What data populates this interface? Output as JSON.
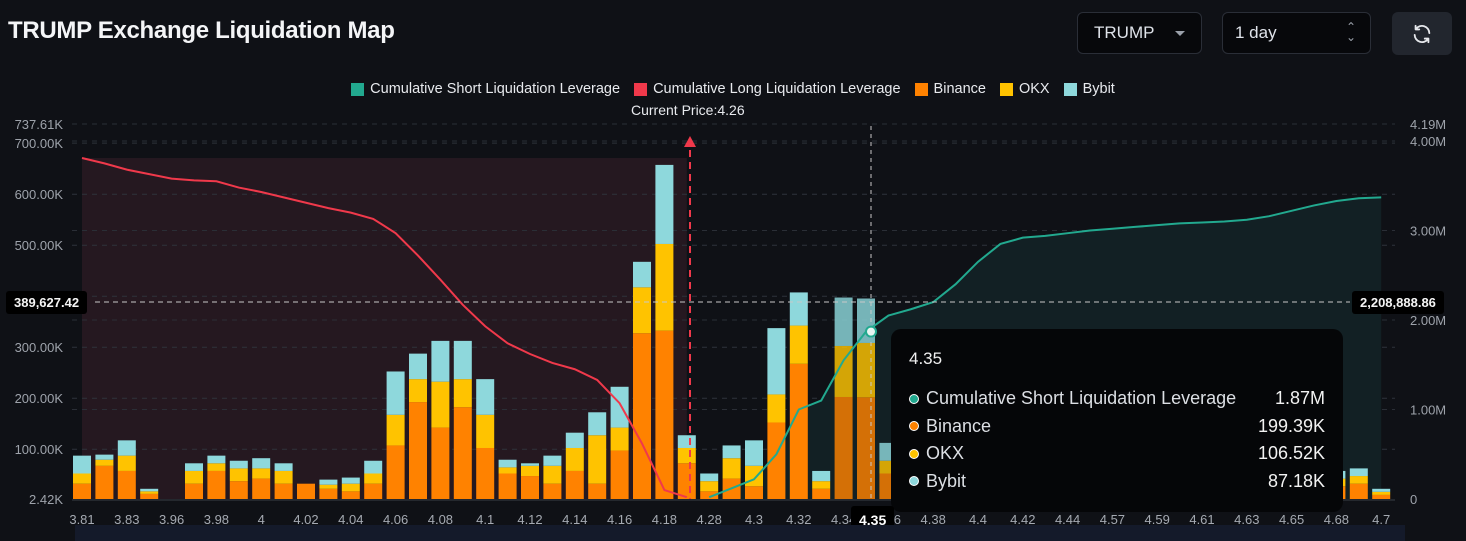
{
  "header": {
    "title": "TRUMP Exchange Liquidation Map",
    "symbol_select": {
      "value": "TRUMP",
      "icon": "caret-down-icon"
    },
    "range_select": {
      "value": "1 day",
      "icon": "up-down-icon"
    },
    "refresh_icon": "refresh-icon"
  },
  "colors": {
    "short": "#22a98f",
    "long": "#f0394b",
    "binance": "#ff8200",
    "okx": "#ffc300",
    "bybit": "#8ed8dc"
  },
  "legend": [
    {
      "label": "Cumulative Short Liquidation Leverage",
      "color": "#22a98f"
    },
    {
      "label": "Cumulative Long Liquidation Leverage",
      "color": "#f0394b"
    },
    {
      "label": "Binance",
      "color": "#ff8200"
    },
    {
      "label": "OKX",
      "color": "#ffc300"
    },
    {
      "label": "Bybit",
      "color": "#8ed8dc"
    }
  ],
  "current_price_label": "Current Price:4.26",
  "crosshair": {
    "y_left_label": "389,627.42",
    "y_right_label": "2,208,888.86",
    "x_label": "4.35"
  },
  "tooltip": {
    "title": "4.35",
    "rows": [
      {
        "label": "Cumulative Short Liquidation Leverage",
        "value": "1.87M",
        "color": "#22a98f"
      },
      {
        "label": "Binance",
        "value": "199.39K",
        "color": "#ff8200"
      },
      {
        "label": "OKX",
        "value": "106.52K",
        "color": "#ffc300"
      },
      {
        "label": "Bybit",
        "value": "87.18K",
        "color": "#8ed8dc"
      }
    ]
  },
  "chart_data": {
    "type": "bar",
    "stacked": true,
    "title": "TRUMP Exchange Liquidation Map",
    "current_price": 4.26,
    "y_left": {
      "ticks": [
        "2.42K",
        "100.00K",
        "200.00K",
        "300.00K",
        "400.00K",
        "500.00K",
        "600.00K",
        "700.00K",
        "737.61K"
      ],
      "range": [
        2420,
        737610
      ]
    },
    "y_right": {
      "ticks": [
        "0",
        "1.00M",
        "2.00M",
        "3.00M",
        "4.00M",
        "4.19M"
      ],
      "range": [
        0,
        4190000
      ]
    },
    "x_tick_labels": [
      "3.81",
      "3.83",
      "3.96",
      "3.98",
      "4",
      "4.02",
      "4.04",
      "4.06",
      "4.08",
      "4.1",
      "4.12",
      "4.14",
      "4.16",
      "4.18",
      "4.28",
      "4.3",
      "4.32",
      "4.34",
      "4.36",
      "4.38",
      "4.4",
      "4.42",
      "4.44",
      "4.57",
      "4.59",
      "4.61",
      "4.63",
      "4.65",
      "4.68",
      "4.7"
    ],
    "categories": [
      "3.81",
      "3.82",
      "3.83",
      "3.84",
      "3.96",
      "3.97",
      "3.98",
      "3.99",
      "4",
      "4.01",
      "4.02",
      "4.03",
      "4.04",
      "4.05",
      "4.06",
      "4.07",
      "4.08",
      "4.09",
      "4.1",
      "4.11",
      "4.12",
      "4.13",
      "4.14",
      "4.15",
      "4.16",
      "4.17",
      "4.18",
      "4.19",
      "4.28",
      "4.29",
      "4.3",
      "4.31",
      "4.32",
      "4.33",
      "4.34",
      "4.35",
      "4.36",
      "4.37",
      "4.38",
      "4.39",
      "4.4",
      "4.41",
      "4.42",
      "4.43",
      "4.44",
      "4.45",
      "4.57",
      "4.58",
      "4.59",
      "4.6",
      "4.61",
      "4.62",
      "4.63",
      "4.64",
      "4.65",
      "4.66",
      "4.68",
      "4.69",
      "4.7"
    ],
    "series": [
      {
        "name": "Binance",
        "axis": "left",
        "values": [
          30,
          65,
          55,
          10,
          0,
          30,
          55,
          35,
          40,
          30,
          30,
          20,
          15,
          30,
          105,
          190,
          140,
          180,
          100,
          50,
          45,
          30,
          55,
          30,
          95,
          325,
          330,
          70,
          15,
          40,
          25,
          150,
          265,
          20,
          200,
          199.39,
          50,
          20,
          0,
          0,
          0,
          0,
          0,
          0,
          0,
          0,
          0,
          0,
          0,
          0,
          0,
          0,
          0,
          0,
          0,
          0,
          25,
          30,
          8
        ]
      },
      {
        "name": "OKX",
        "axis": "left",
        "values": [
          20,
          12,
          30,
          5,
          0,
          25,
          15,
          25,
          20,
          25,
          0,
          8,
          15,
          20,
          60,
          45,
          90,
          55,
          65,
          12,
          20,
          35,
          45,
          95,
          45,
          90,
          170,
          30,
          20,
          40,
          40,
          55,
          75,
          15,
          100,
          106.52,
          25,
          10,
          0,
          0,
          0,
          0,
          0,
          0,
          0,
          0,
          0,
          0,
          0,
          0,
          0,
          0,
          0,
          0,
          0,
          0,
          15,
          15,
          6
        ]
      },
      {
        "name": "Bybit",
        "axis": "left",
        "values": [
          35,
          10,
          30,
          5,
          0,
          15,
          15,
          15,
          20,
          15,
          0,
          10,
          12,
          25,
          85,
          50,
          80,
          75,
          70,
          15,
          5,
          20,
          30,
          45,
          80,
          50,
          155,
          25,
          15,
          25,
          50,
          130,
          65,
          20,
          95,
          87.18,
          35,
          20,
          0,
          0,
          0,
          0,
          0,
          0,
          0,
          0,
          0,
          0,
          0,
          0,
          0,
          0,
          0,
          0,
          0,
          0,
          15,
          15,
          6
        ]
      },
      {
        "name": "Cumulative Long Liquidation Leverage",
        "axis": "right",
        "values": [
          3.81,
          3.75,
          3.68,
          3.63,
          3.58,
          3.56,
          3.55,
          3.48,
          3.43,
          3.37,
          3.31,
          3.25,
          3.2,
          3.13,
          2.97,
          2.72,
          2.45,
          2.17,
          1.93,
          1.74,
          1.62,
          1.52,
          1.45,
          1.33,
          1.07,
          0.62,
          0.1,
          0.02,
          null,
          null,
          null,
          null,
          null,
          null,
          null,
          null,
          null,
          null,
          null,
          null,
          null,
          null,
          null,
          null,
          null,
          null,
          null,
          null,
          null,
          null,
          null,
          null,
          null,
          null,
          null,
          null,
          null,
          null,
          null
        ]
      },
      {
        "name": "Cumulative Short Liquidation Leverage",
        "axis": "right",
        "values": [
          null,
          null,
          null,
          null,
          null,
          null,
          null,
          null,
          null,
          null,
          null,
          null,
          null,
          null,
          null,
          null,
          null,
          null,
          null,
          null,
          null,
          null,
          null,
          null,
          null,
          null,
          null,
          null,
          0.02,
          0.12,
          0.22,
          0.5,
          1.0,
          1.1,
          1.55,
          1.87,
          2.05,
          2.12,
          2.2,
          2.4,
          2.65,
          2.85,
          2.92,
          2.94,
          2.97,
          3.0,
          3.02,
          3.04,
          3.06,
          3.08,
          3.09,
          3.1,
          3.12,
          3.16,
          3.22,
          3.28,
          3.33,
          3.36,
          3.37
        ]
      }
    ],
    "xlabel": "",
    "ylabel": "",
    "legend_position": "top-center",
    "grid": true
  }
}
